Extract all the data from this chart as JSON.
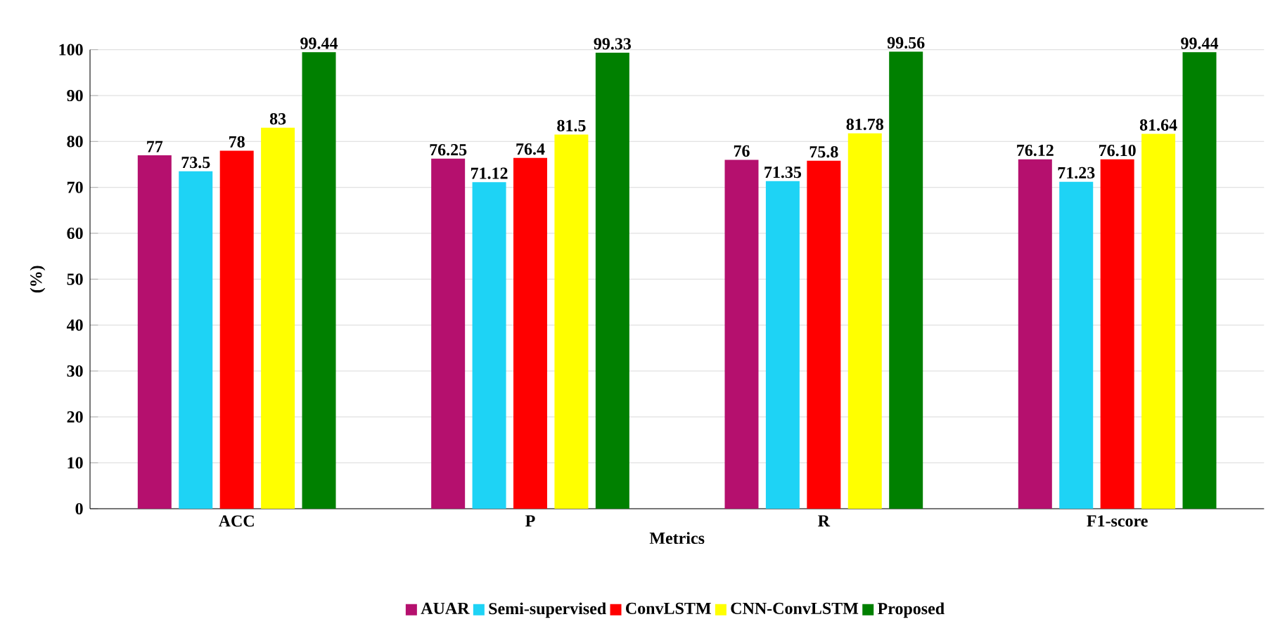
{
  "chart_data": {
    "type": "bar",
    "xlabel": "Metrics",
    "ylabel": "(%)",
    "categories": [
      "ACC",
      "P",
      "R",
      "F1-score"
    ],
    "series": [
      {
        "name": "AUAR",
        "color": "#b5106e",
        "values": [
          77,
          76.25,
          76,
          76.12
        ],
        "value_labels": [
          "77",
          "76.25",
          "76",
          "76.12"
        ]
      },
      {
        "name": "Semi-supervised",
        "color": "#1ed3f5",
        "values": [
          73.5,
          71.12,
          71.35,
          71.23
        ],
        "value_labels": [
          "73.5",
          "71.12",
          "71.35",
          "71.23"
        ]
      },
      {
        "name": "ConvLSTM",
        "color": "#ff0000",
        "values": [
          78,
          76.4,
          75.8,
          76.1
        ],
        "value_labels": [
          "78",
          "76.4",
          "75.8",
          "76.10"
        ]
      },
      {
        "name": "CNN-ConvLSTM",
        "color": "#ffff00",
        "values": [
          83,
          81.5,
          81.78,
          81.64
        ],
        "value_labels": [
          "83",
          "81.5",
          "81.78",
          "81.64"
        ]
      },
      {
        "name": "Proposed",
        "color": "#008000",
        "values": [
          99.44,
          99.33,
          99.56,
          99.44
        ],
        "value_labels": [
          "99.44",
          "99.33",
          "99.56",
          "99.44"
        ]
      }
    ],
    "ylim": [
      0,
      100
    ],
    "yticks": [
      0,
      10,
      20,
      30,
      40,
      50,
      60,
      70,
      80,
      90,
      100
    ],
    "grid": "y",
    "legend": "bottom",
    "marker": "square"
  }
}
